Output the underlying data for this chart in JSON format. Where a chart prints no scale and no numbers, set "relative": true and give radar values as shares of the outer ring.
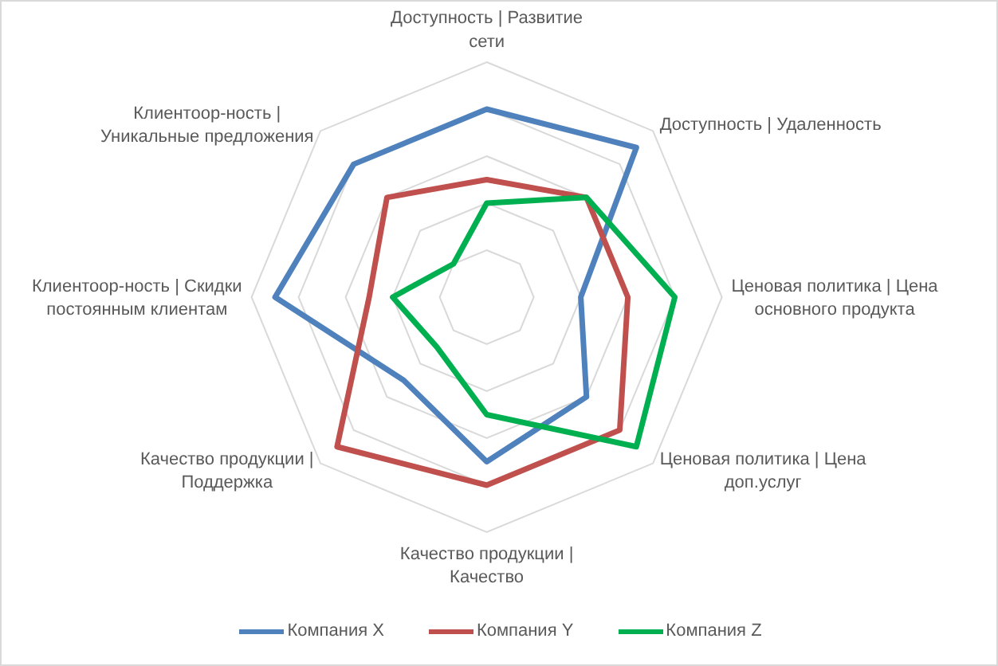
{
  "chart_data": {
    "type": "radar",
    "relative": true,
    "categories": [
      "Доступность | Развитие сети",
      "Доступность | Удаленность",
      "Ценовая политика | Цена основного продукта",
      "Ценовая политика | Цена доп.услуг",
      "Качество продукции | Качество",
      "Качество продукции | Поддержка",
      "Клиентоор-ность | Скидки постоянным клиентам",
      "Клиентоор-ность | Уникальные предложения"
    ],
    "series": [
      {
        "name": "Компания X",
        "color": "#4f81bd",
        "values": [
          0.8,
          0.9,
          0.4,
          0.6,
          0.7,
          0.5,
          0.9,
          0.8
        ]
      },
      {
        "name": "Компания Y",
        "color": "#c0504d",
        "values": [
          0.5,
          0.6,
          0.6,
          0.8,
          0.8,
          0.9,
          0.5,
          0.6
        ]
      },
      {
        "name": "Компания Z",
        "color": "#00b050",
        "values": [
          0.4,
          0.6,
          0.8,
          0.9,
          0.5,
          0.3,
          0.4,
          0.2
        ]
      }
    ],
    "grid": true,
    "legend": "bottom"
  }
}
